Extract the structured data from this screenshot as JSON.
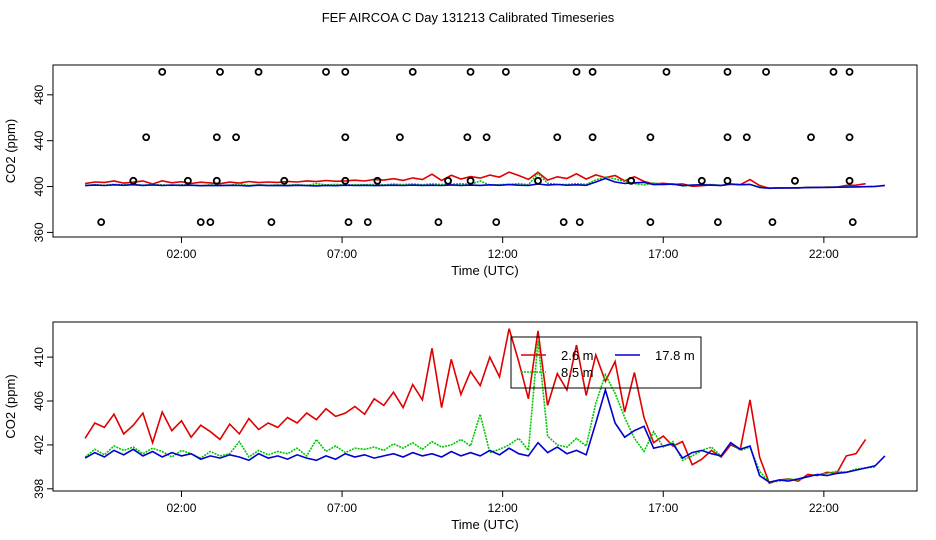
{
  "title": "FEF AIRCOA C  Day 131213  Calibrated Timeseries",
  "colors": {
    "series_2_6": "#e00000",
    "series_8_5": "#00c800",
    "series_17_8": "#0000d0",
    "axis": "#000000"
  },
  "chart_data": [
    {
      "type": "line",
      "panel": "top",
      "xlabel": "Time (UTC)",
      "ylabel": "CO2 (ppm)",
      "xlim": [
        -2.0,
        24.9
      ],
      "ylim": [
        356,
        506
      ],
      "xticks": [
        2,
        7,
        12,
        17,
        22
      ],
      "xtick_labels": [
        "02:00",
        "07:00",
        "12:00",
        "17:00",
        "22:00"
      ],
      "yticks": [
        360,
        400,
        440,
        480
      ],
      "ytick_labels": [
        "360",
        "400",
        "440",
        "480"
      ],
      "calibration_points": [
        {
          "t": 1.4,
          "v": 500
        },
        {
          "t": 3.2,
          "v": 500
        },
        {
          "t": 4.4,
          "v": 500
        },
        {
          "t": 6.5,
          "v": 500
        },
        {
          "t": 7.1,
          "v": 500
        },
        {
          "t": 9.2,
          "v": 500
        },
        {
          "t": 11.0,
          "v": 500
        },
        {
          "t": 12.1,
          "v": 500
        },
        {
          "t": 14.3,
          "v": 500
        },
        {
          "t": 14.8,
          "v": 500
        },
        {
          "t": 17.1,
          "v": 500
        },
        {
          "t": 19.0,
          "v": 500
        },
        {
          "t": 20.2,
          "v": 500
        },
        {
          "t": 22.3,
          "v": 500
        },
        {
          "t": 22.8,
          "v": 500
        },
        {
          "t": 0.9,
          "v": 443
        },
        {
          "t": 3.1,
          "v": 443
        },
        {
          "t": 3.7,
          "v": 443
        },
        {
          "t": 7.1,
          "v": 443
        },
        {
          "t": 8.8,
          "v": 443
        },
        {
          "t": 10.9,
          "v": 443
        },
        {
          "t": 11.5,
          "v": 443
        },
        {
          "t": 13.7,
          "v": 443
        },
        {
          "t": 14.8,
          "v": 443
        },
        {
          "t": 16.6,
          "v": 443
        },
        {
          "t": 19.0,
          "v": 443
        },
        {
          "t": 19.6,
          "v": 443
        },
        {
          "t": 21.6,
          "v": 443
        },
        {
          "t": 22.8,
          "v": 443
        },
        {
          "t": 0.5,
          "v": 405
        },
        {
          "t": 2.2,
          "v": 405
        },
        {
          "t": 3.1,
          "v": 405
        },
        {
          "t": 5.2,
          "v": 405
        },
        {
          "t": 7.1,
          "v": 405
        },
        {
          "t": 8.1,
          "v": 405
        },
        {
          "t": 10.3,
          "v": 405
        },
        {
          "t": 11.0,
          "v": 405
        },
        {
          "t": 13.1,
          "v": 405
        },
        {
          "t": 16.0,
          "v": 405
        },
        {
          "t": 18.2,
          "v": 405
        },
        {
          "t": 19.0,
          "v": 405
        },
        {
          "t": 21.1,
          "v": 405
        },
        {
          "t": 22.8,
          "v": 405
        },
        {
          "t": -0.5,
          "v": 369
        },
        {
          "t": 2.6,
          "v": 369
        },
        {
          "t": 2.9,
          "v": 369
        },
        {
          "t": 4.8,
          "v": 369
        },
        {
          "t": 7.2,
          "v": 369
        },
        {
          "t": 7.8,
          "v": 369
        },
        {
          "t": 10.0,
          "v": 369
        },
        {
          "t": 11.8,
          "v": 369
        },
        {
          "t": 13.9,
          "v": 369
        },
        {
          "t": 14.4,
          "v": 369
        },
        {
          "t": 16.6,
          "v": 369
        },
        {
          "t": 18.7,
          "v": 369
        },
        {
          "t": 20.4,
          "v": 369
        },
        {
          "t": 22.9,
          "v": 369
        }
      ]
    },
    {
      "type": "line",
      "panel": "bottom",
      "xlabel": "Time (UTC)",
      "ylabel": "CO2 (ppm)",
      "xlim": [
        -2.0,
        24.9
      ],
      "ylim": [
        397.8,
        413.2
      ],
      "xticks": [
        2,
        7,
        12,
        17,
        22
      ],
      "xtick_labels": [
        "02:00",
        "07:00",
        "12:00",
        "17:00",
        "22:00"
      ],
      "yticks": [
        398,
        402,
        406,
        410
      ],
      "ytick_labels": [
        "398",
        "402",
        "406",
        "410"
      ],
      "legend_position": "top-center",
      "series": [
        {
          "name": "2.6 m",
          "t": [
            -1.0,
            -0.7,
            -0.4,
            -0.1,
            0.2,
            0.5,
            0.8,
            1.1,
            1.4,
            1.7,
            2.0,
            2.3,
            2.6,
            2.9,
            3.2,
            3.5,
            3.8,
            4.1,
            4.4,
            4.7,
            5.0,
            5.3,
            5.6,
            5.9,
            6.2,
            6.5,
            6.8,
            7.1,
            7.4,
            7.7,
            8.0,
            8.3,
            8.6,
            8.9,
            9.2,
            9.5,
            9.8,
            10.1,
            10.4,
            10.7,
            11.0,
            11.3,
            11.6,
            11.9,
            12.2,
            12.5,
            12.8,
            13.1,
            13.4,
            13.7,
            14.0,
            14.3,
            14.6,
            14.9,
            15.2,
            15.5,
            15.8,
            16.1,
            16.4,
            16.7,
            17.0,
            17.3,
            17.6,
            17.9,
            18.2,
            18.5,
            18.8,
            19.1,
            19.4,
            19.7,
            20.0,
            20.3,
            20.6,
            20.9,
            21.2,
            21.5,
            21.8,
            22.1,
            22.4,
            22.7,
            23.0,
            23.3
          ],
          "v": [
            402.6,
            404.0,
            403.6,
            404.8,
            403.0,
            403.8,
            404.9,
            402.2,
            405.0,
            403.3,
            404.2,
            402.7,
            403.8,
            403.2,
            402.5,
            403.9,
            403.0,
            404.4,
            403.4,
            404.0,
            403.6,
            404.5,
            404.0,
            404.9,
            404.3,
            405.3,
            404.6,
            404.9,
            405.5,
            404.8,
            406.2,
            405.6,
            406.8,
            405.4,
            407.5,
            406.1,
            410.8,
            405.4,
            409.8,
            406.6,
            408.7,
            407.4,
            410.0,
            408.2,
            412.6,
            409.6,
            406.2,
            412.4,
            405.6,
            408.5,
            407.0,
            411.1,
            406.5,
            410.2,
            407.8,
            409.6,
            405.0,
            408.6,
            404.5,
            402.2,
            402.8,
            401.9,
            402.3,
            400.2,
            400.7,
            401.5,
            400.9,
            402.0,
            401.6,
            406.1,
            400.9,
            398.5,
            398.8,
            398.9,
            398.7,
            399.3,
            399.2,
            399.5,
            399.4,
            401.0,
            401.2,
            402.5
          ]
        },
        {
          "name": "8.5 m",
          "t": [
            -1.0,
            -0.7,
            -0.4,
            -0.1,
            0.2,
            0.5,
            0.8,
            1.1,
            1.4,
            1.7,
            2.0,
            2.3,
            2.6,
            2.9,
            3.2,
            3.5,
            3.8,
            4.1,
            4.4,
            4.7,
            5.0,
            5.3,
            5.6,
            5.9,
            6.2,
            6.5,
            6.8,
            7.1,
            7.4,
            7.7,
            8.0,
            8.3,
            8.6,
            8.9,
            9.2,
            9.5,
            9.8,
            10.1,
            10.4,
            10.7,
            11.0,
            11.3,
            11.6,
            11.9,
            12.2,
            12.5,
            12.8,
            13.1,
            13.4,
            13.7,
            14.0,
            14.3,
            14.6,
            14.9,
            15.2,
            15.5,
            15.8,
            16.1,
            16.4,
            16.7,
            17.0,
            17.3,
            17.6,
            17.9,
            18.2,
            18.5,
            18.8,
            19.1,
            19.4,
            19.7,
            20.0,
            20.3,
            20.6,
            20.9,
            21.2,
            21.5,
            21.8,
            22.1,
            22.4,
            22.7,
            23.0,
            23.3,
            23.6
          ],
          "v": [
            400.9,
            401.6,
            401.1,
            401.9,
            401.5,
            401.8,
            401.2,
            401.7,
            401.4,
            400.9,
            401.5,
            401.2,
            400.8,
            401.4,
            401.0,
            401.2,
            402.3,
            400.9,
            401.5,
            401.1,
            401.4,
            401.2,
            401.7,
            401.0,
            402.5,
            401.4,
            401.9,
            401.3,
            401.7,
            401.6,
            401.8,
            401.5,
            402.1,
            401.7,
            402.2,
            401.6,
            402.3,
            401.8,
            402.0,
            402.5,
            401.9,
            404.8,
            401.3,
            401.6,
            402.0,
            402.6,
            401.5,
            411.5,
            402.8,
            402.0,
            401.8,
            402.6,
            401.9,
            405.8,
            408.4,
            406.7,
            404.5,
            402.6,
            401.4,
            403.2,
            401.8,
            402.3,
            400.6,
            401.0,
            401.5,
            401.8,
            401.0,
            402.2,
            401.5,
            401.8,
            399.6,
            398.6,
            398.7,
            398.9,
            398.8,
            399.1,
            399.3,
            399.4,
            399.6,
            399.5,
            399.8,
            399.9,
            400.0
          ]
        },
        {
          "name": "17.8 m",
          "t": [
            -1.0,
            -0.7,
            -0.4,
            -0.1,
            0.2,
            0.5,
            0.8,
            1.1,
            1.4,
            1.7,
            2.0,
            2.3,
            2.6,
            2.9,
            3.2,
            3.5,
            3.8,
            4.1,
            4.4,
            4.7,
            5.0,
            5.3,
            5.6,
            5.9,
            6.2,
            6.5,
            6.8,
            7.1,
            7.4,
            7.7,
            8.0,
            8.3,
            8.6,
            8.9,
            9.2,
            9.5,
            9.8,
            10.1,
            10.4,
            10.7,
            11.0,
            11.3,
            11.6,
            11.9,
            12.2,
            12.5,
            12.8,
            13.1,
            13.4,
            13.7,
            14.0,
            14.3,
            14.6,
            14.9,
            15.2,
            15.5,
            15.8,
            16.1,
            16.4,
            16.7,
            17.0,
            17.3,
            17.6,
            17.9,
            18.2,
            18.5,
            18.8,
            19.1,
            19.4,
            19.7,
            20.0,
            20.3,
            20.6,
            20.9,
            21.2,
            21.5,
            21.8,
            22.1,
            22.4,
            22.7,
            23.0,
            23.3,
            23.6,
            23.9
          ],
          "v": [
            400.8,
            401.3,
            400.9,
            401.5,
            401.1,
            401.6,
            401.0,
            401.4,
            400.9,
            401.3,
            401.0,
            401.2,
            400.7,
            401.0,
            400.8,
            401.1,
            400.9,
            400.6,
            401.2,
            400.8,
            401.0,
            400.7,
            401.1,
            400.8,
            400.6,
            401.0,
            400.7,
            401.2,
            400.9,
            401.1,
            400.8,
            401.0,
            401.2,
            400.9,
            401.3,
            401.0,
            401.2,
            400.9,
            401.4,
            401.0,
            401.3,
            401.0,
            401.5,
            401.1,
            401.7,
            401.2,
            401.0,
            402.2,
            401.3,
            401.8,
            401.2,
            401.5,
            401.1,
            404.0,
            407.0,
            404.0,
            402.7,
            403.3,
            403.7,
            401.7,
            401.9,
            402.1,
            400.8,
            401.3,
            401.5,
            401.2,
            401.0,
            402.2,
            401.6,
            401.9,
            399.2,
            398.6,
            398.8,
            398.7,
            398.9,
            399.1,
            399.3,
            399.2,
            399.4,
            399.5,
            399.7,
            399.9,
            400.1,
            401.0
          ]
        }
      ]
    }
  ]
}
